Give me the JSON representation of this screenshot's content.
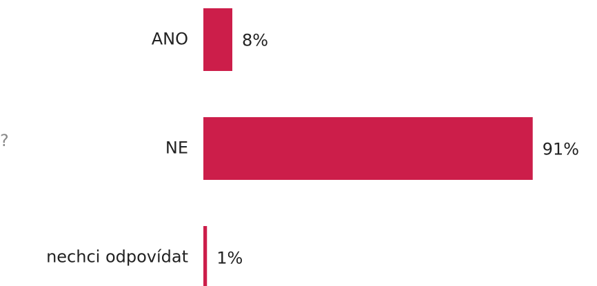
{
  "chart_data": {
    "type": "bar",
    "orientation": "horizontal",
    "annotation": "?",
    "categories": [
      "ANO",
      "NE",
      "nechci odpovídat"
    ],
    "values": [
      8,
      91,
      1
    ],
    "value_labels": [
      "8%",
      "91%",
      "1%"
    ],
    "color": "#cc1e4a",
    "xlim": [
      0,
      100
    ]
  }
}
